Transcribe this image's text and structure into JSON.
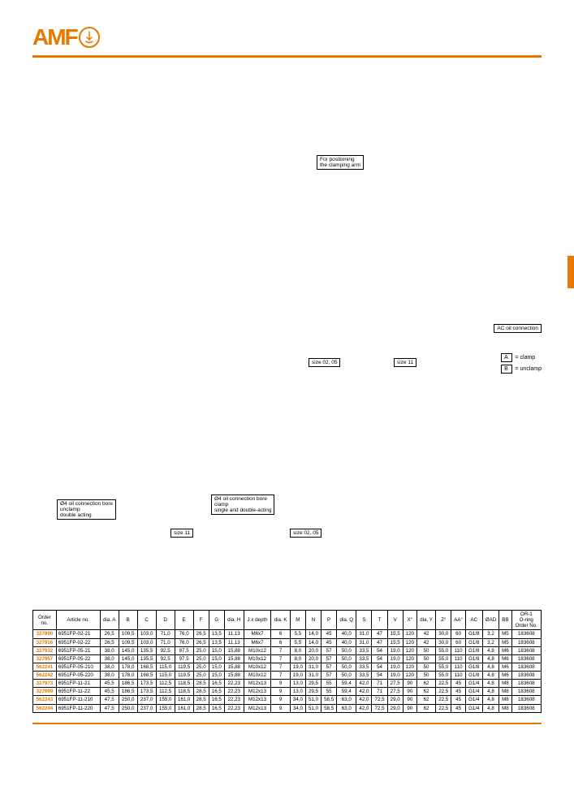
{
  "logo_text": "AMF",
  "note_positioning": "For positioning\nthe clamping arm",
  "ac_label": "AC oil connection",
  "size_a": "size 02, 05",
  "size_b": "size 11",
  "legend_a_box": "A",
  "legend_a_text": "= clamp",
  "legend_b_box": "B",
  "legend_b_text": "= unclamp",
  "conn_unclamp_l1": "Ø4 oil connection bore",
  "conn_unclamp_l2": "unclamp",
  "conn_unclamp_l3": "double acting",
  "conn_clamp_l1": "Ø4 oil connection bore",
  "conn_clamp_l2": "clamp",
  "conn_clamp_l3": "single and double-acting",
  "size11_lbl": "size 11",
  "size0205_lbl": "size 02, 05",
  "table": {
    "headers": [
      "Order\nno.",
      "Article no.",
      "dia. A",
      "B",
      "C",
      "D",
      "E",
      "F",
      "G",
      "dia. H",
      "J x depth",
      "dia. K",
      "M",
      "N",
      "P",
      "dia. Q",
      "S",
      "T",
      "V",
      "X°",
      "dia. Y",
      "Z°",
      "AA°",
      "AC",
      "ØAD",
      "BB",
      "OR-1\nO-ring\nOrder No."
    ],
    "rows": [
      [
        "327890",
        "6951FP-02-21",
        "26,5",
        "109,5",
        "103,0",
        "71,0",
        "76,0",
        "26,5",
        "13,5",
        "11,13",
        "M6x7",
        "6",
        "5,5",
        "14,0",
        "45",
        "40,0",
        "31,0",
        "47",
        "15,5",
        "120",
        "42",
        "30,0",
        "60",
        "G1/8",
        "3,2",
        "M5",
        "183608"
      ],
      [
        "327916",
        "6951FP-02-22",
        "26,5",
        "109,5",
        "103,0",
        "71,0",
        "76,0",
        "26,5",
        "13,5",
        "11,13",
        "M6x7",
        "6",
        "5,5",
        "14,0",
        "45",
        "40,0",
        "31,0",
        "47",
        "15,5",
        "120",
        "42",
        "30,0",
        "60",
        "G1/8",
        "3,2",
        "M5",
        "183608"
      ],
      [
        "327932",
        "6951FP-05-21",
        "38,0",
        "145,0",
        "135,5",
        "92,5",
        "97,5",
        "25,0",
        "15,0",
        "15,88",
        "M10x12",
        "7",
        "8,0",
        "20,0",
        "57",
        "50,0",
        "33,5",
        "54",
        "19,0",
        "120",
        "50",
        "55,0",
        "110",
        "G1/8",
        "4,8",
        "M6",
        "183608"
      ],
      [
        "327957",
        "6951FP-05-22",
        "38,0",
        "145,0",
        "135,5",
        "92,5",
        "97,5",
        "25,0",
        "15,0",
        "15,88",
        "M10x12",
        "7",
        "8,0",
        "20,0",
        "57",
        "50,0",
        "33,5",
        "54",
        "19,0",
        "120",
        "50",
        "55,0",
        "110",
        "G1/8",
        "4,8",
        "M6",
        "183608"
      ],
      [
        "562241",
        "6951FP-05-210",
        "38,0",
        "178,0",
        "168,5",
        "115,0",
        "119,5",
        "25,0",
        "15,0",
        "15,88",
        "M10x12",
        "7",
        "19,0",
        "31,0",
        "57",
        "50,0",
        "33,5",
        "54",
        "19,0",
        "120",
        "50",
        "55,0",
        "110",
        "G1/8",
        "4,8",
        "M6",
        "183608"
      ],
      [
        "562242",
        "6951FP-05-220",
        "38,0",
        "178,0",
        "168,5",
        "115,0",
        "119,5",
        "25,0",
        "15,0",
        "15,88",
        "M10x12",
        "7",
        "19,0",
        "31,0",
        "57",
        "50,0",
        "33,5",
        "54",
        "19,0",
        "120",
        "50",
        "55,0",
        "110",
        "G1/8",
        "4,8",
        "M6",
        "183608"
      ],
      [
        "327973",
        "6951FP-11-21",
        "45,5",
        "186,5",
        "173,5",
        "112,5",
        "118,5",
        "28,5",
        "16,5",
        "22,23",
        "M12x13",
        "9",
        "13,0",
        "29,5",
        "55",
        "59,4",
        "42,0",
        "71",
        "27,5",
        "90",
        "62",
        "22,5",
        "45",
        "G1/4",
        "4,8",
        "M8",
        "183608"
      ],
      [
        "327999",
        "6951FP-11-22",
        "45,5",
        "186,5",
        "173,5",
        "112,5",
        "118,5",
        "28,5",
        "16,5",
        "22,23",
        "M12x13",
        "9",
        "13,0",
        "29,5",
        "55",
        "59,4",
        "42,0",
        "71",
        "27,5",
        "90",
        "62",
        "22,5",
        "45",
        "G1/4",
        "4,8",
        "M8",
        "183608"
      ],
      [
        "562243",
        "6951FP-11-210",
        "47,5",
        "250,0",
        "237,0",
        "155,0",
        "161,0",
        "28,5",
        "16,5",
        "22,23",
        "M12x13",
        "9",
        "34,0",
        "51,0",
        "58,5",
        "63,0",
        "42,0",
        "72,5",
        "29,0",
        "90",
        "62",
        "22,5",
        "45",
        "G1/4",
        "4,8",
        "M8",
        "183608"
      ],
      [
        "562244",
        "6951FP-11-220",
        "47,5",
        "250,0",
        "237,0",
        "155,0",
        "161,0",
        "28,5",
        "16,5",
        "22,23",
        "M12x13",
        "9",
        "34,0",
        "51,0",
        "58,5",
        "63,0",
        "42,0",
        "72,5",
        "29,0",
        "90",
        "62",
        "22,5",
        "45",
        "G1/4",
        "4,8",
        "M8",
        "183608"
      ]
    ]
  }
}
